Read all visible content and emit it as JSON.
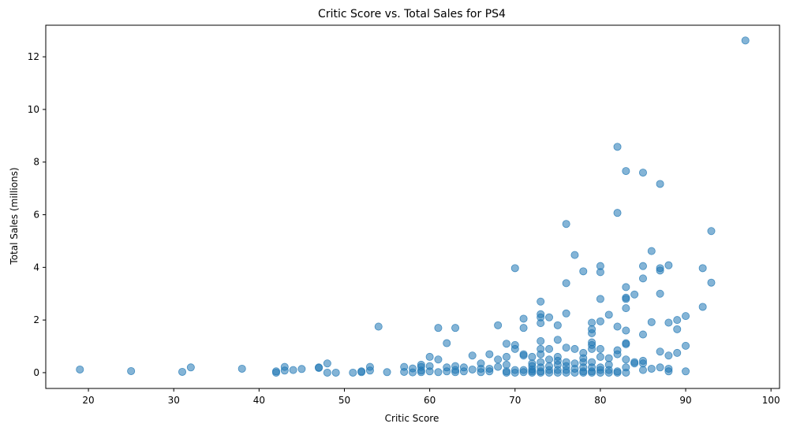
{
  "chart_data": {
    "type": "scatter",
    "title": "Critic Score vs. Total Sales for PS4",
    "xlabel": "Critic Score",
    "ylabel": "Total Sales (millions)",
    "xlim": [
      15,
      101
    ],
    "ylim": [
      -0.6,
      13.2
    ],
    "xticks": [
      20,
      30,
      40,
      50,
      60,
      70,
      80,
      90,
      100
    ],
    "yticks": [
      0,
      2,
      4,
      6,
      8,
      10,
      12
    ],
    "grid": false,
    "legend": "none",
    "marker_color": "#1f77b4",
    "marker_alpha": 0.55,
    "points": [
      [
        19,
        0.12
      ],
      [
        25,
        0.06
      ],
      [
        31,
        0.03
      ],
      [
        32,
        0.2
      ],
      [
        38,
        0.15
      ],
      [
        42,
        0.05
      ],
      [
        42,
        0.0
      ],
      [
        43,
        0.22
      ],
      [
        43,
        0.08
      ],
      [
        44,
        0.1
      ],
      [
        45,
        0.14
      ],
      [
        47,
        0.2
      ],
      [
        47,
        0.18
      ],
      [
        48,
        0.35
      ],
      [
        48,
        0.0
      ],
      [
        49,
        0.0
      ],
      [
        51,
        0.0
      ],
      [
        52,
        0.05
      ],
      [
        52,
        0.02
      ],
      [
        53,
        0.22
      ],
      [
        53,
        0.08
      ],
      [
        54,
        1.75
      ],
      [
        55,
        0.02
      ],
      [
        57,
        0.22
      ],
      [
        57,
        0.03
      ],
      [
        58,
        0.16
      ],
      [
        58,
        0.01
      ],
      [
        59,
        0.3
      ],
      [
        59,
        0.22
      ],
      [
        59,
        0.08
      ],
      [
        59,
        0.02
      ],
      [
        60,
        0.6
      ],
      [
        60,
        0.25
      ],
      [
        60,
        0.05
      ],
      [
        61,
        1.7
      ],
      [
        61,
        0.5
      ],
      [
        61,
        0.02
      ],
      [
        62,
        1.12
      ],
      [
        62,
        0.2
      ],
      [
        62,
        0.05
      ],
      [
        63,
        1.7
      ],
      [
        63,
        0.25
      ],
      [
        63,
        0.1
      ],
      [
        63,
        0.02
      ],
      [
        64,
        0.2
      ],
      [
        64,
        0.05
      ],
      [
        65,
        0.65
      ],
      [
        65,
        0.12
      ],
      [
        66,
        0.35
      ],
      [
        66,
        0.15
      ],
      [
        66,
        0.02
      ],
      [
        67,
        0.7
      ],
      [
        67,
        0.15
      ],
      [
        67,
        0.05
      ],
      [
        68,
        1.8
      ],
      [
        68,
        0.5
      ],
      [
        68,
        0.22
      ],
      [
        69,
        1.1
      ],
      [
        69,
        0.6
      ],
      [
        69,
        0.3
      ],
      [
        69,
        0.05
      ],
      [
        69,
        0.0
      ],
      [
        70,
        3.97
      ],
      [
        70,
        1.05
      ],
      [
        70,
        0.9
      ],
      [
        70,
        0.1
      ],
      [
        70,
        0.0
      ],
      [
        71,
        2.05
      ],
      [
        71,
        1.7
      ],
      [
        71,
        0.7
      ],
      [
        71,
        0.65
      ],
      [
        71,
        0.1
      ],
      [
        71,
        0.02
      ],
      [
        72,
        0.6
      ],
      [
        72,
        0.35
      ],
      [
        72,
        0.25
      ],
      [
        72,
        0.12
      ],
      [
        72,
        0.05
      ],
      [
        72,
        0.0
      ],
      [
        73,
        2.7
      ],
      [
        73,
        2.22
      ],
      [
        73,
        2.1
      ],
      [
        73,
        1.88
      ],
      [
        73,
        1.2
      ],
      [
        73,
        0.9
      ],
      [
        73,
        0.7
      ],
      [
        73,
        0.4
      ],
      [
        73,
        0.2
      ],
      [
        73,
        0.05
      ],
      [
        73,
        0.0
      ],
      [
        74,
        2.1
      ],
      [
        74,
        0.9
      ],
      [
        74,
        0.5
      ],
      [
        74,
        0.25
      ],
      [
        74,
        0.1
      ],
      [
        74,
        0.0
      ],
      [
        75,
        1.8
      ],
      [
        75,
        1.25
      ],
      [
        75,
        0.6
      ],
      [
        75,
        0.45
      ],
      [
        75,
        0.3
      ],
      [
        75,
        0.1
      ],
      [
        75,
        0.0
      ],
      [
        76,
        5.65
      ],
      [
        76,
        3.4
      ],
      [
        76,
        2.25
      ],
      [
        76,
        0.95
      ],
      [
        76,
        0.4
      ],
      [
        76,
        0.25
      ],
      [
        76,
        0.1
      ],
      [
        76,
        0.0
      ],
      [
        77,
        4.47
      ],
      [
        77,
        0.9
      ],
      [
        77,
        0.35
      ],
      [
        77,
        0.15
      ],
      [
        77,
        0.0
      ],
      [
        78,
        3.85
      ],
      [
        78,
        0.75
      ],
      [
        78,
        0.55
      ],
      [
        78,
        0.4
      ],
      [
        78,
        0.2
      ],
      [
        78,
        0.05
      ],
      [
        78,
        0.0
      ],
      [
        79,
        1.9
      ],
      [
        79,
        1.65
      ],
      [
        79,
        1.5
      ],
      [
        79,
        1.15
      ],
      [
        79,
        1.05
      ],
      [
        79,
        0.9
      ],
      [
        79,
        0.4
      ],
      [
        79,
        0.2
      ],
      [
        79,
        0.05
      ],
      [
        79,
        0.0
      ],
      [
        80,
        4.05
      ],
      [
        80,
        3.82
      ],
      [
        80,
        2.8
      ],
      [
        80,
        1.95
      ],
      [
        80,
        0.9
      ],
      [
        80,
        0.6
      ],
      [
        80,
        0.2
      ],
      [
        80,
        0.1
      ],
      [
        80,
        0.0
      ],
      [
        81,
        2.2
      ],
      [
        81,
        0.55
      ],
      [
        81,
        0.3
      ],
      [
        81,
        0.1
      ],
      [
        81,
        0.0
      ],
      [
        82,
        8.58
      ],
      [
        82,
        6.07
      ],
      [
        82,
        1.75
      ],
      [
        82,
        0.85
      ],
      [
        82,
        0.7
      ],
      [
        82,
        0.05
      ],
      [
        82,
        0.0
      ],
      [
        83,
        7.66
      ],
      [
        83,
        3.25
      ],
      [
        83,
        2.85
      ],
      [
        83,
        2.8
      ],
      [
        83,
        2.45
      ],
      [
        83,
        1.6
      ],
      [
        83,
        1.12
      ],
      [
        83,
        1.08
      ],
      [
        83,
        0.5
      ],
      [
        83,
        0.2
      ],
      [
        83,
        0.0
      ],
      [
        84,
        2.97
      ],
      [
        84,
        0.4
      ],
      [
        84,
        0.35
      ],
      [
        85,
        7.6
      ],
      [
        85,
        4.05
      ],
      [
        85,
        3.58
      ],
      [
        85,
        1.45
      ],
      [
        85,
        0.45
      ],
      [
        85,
        0.35
      ],
      [
        85,
        0.1
      ],
      [
        86,
        4.62
      ],
      [
        86,
        1.92
      ],
      [
        86,
        0.15
      ],
      [
        87,
        7.17
      ],
      [
        87,
        3.97
      ],
      [
        87,
        3.88
      ],
      [
        87,
        3.0
      ],
      [
        87,
        0.8
      ],
      [
        87,
        0.2
      ],
      [
        88,
        4.08
      ],
      [
        88,
        1.9
      ],
      [
        88,
        0.65
      ],
      [
        88,
        0.15
      ],
      [
        88,
        0.05
      ],
      [
        89,
        2.0
      ],
      [
        89,
        1.65
      ],
      [
        89,
        0.75
      ],
      [
        90,
        2.15
      ],
      [
        90,
        1.02
      ],
      [
        90,
        0.05
      ],
      [
        92,
        3.97
      ],
      [
        92,
        2.5
      ],
      [
        93,
        5.38
      ],
      [
        93,
        3.42
      ],
      [
        97,
        12.62
      ]
    ]
  }
}
